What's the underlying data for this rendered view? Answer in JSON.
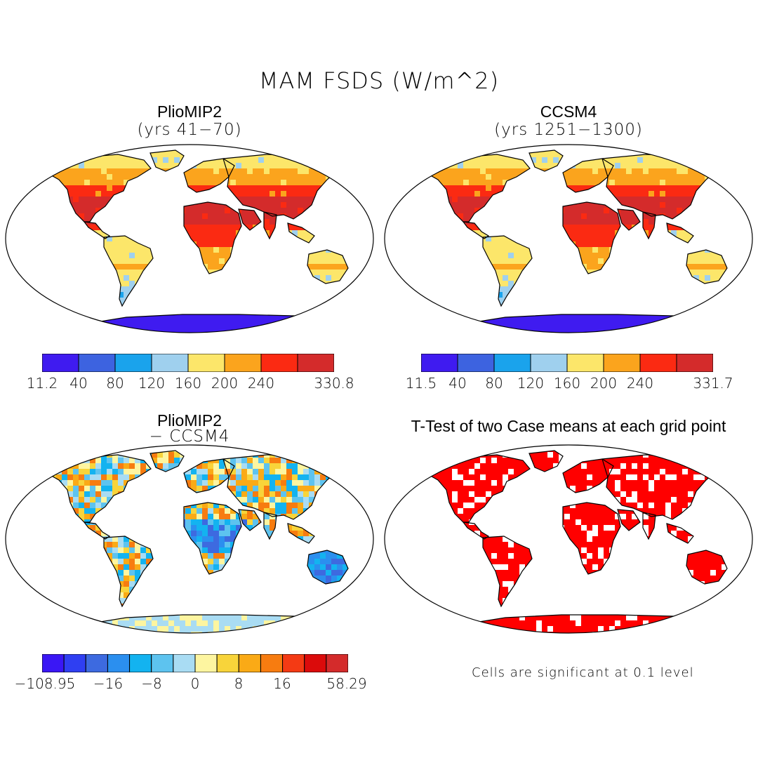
{
  "figure": {
    "title": "MAM FSDS (W/m^2)"
  },
  "panels": [
    {
      "id": "pliomip2",
      "title": "PlioMIP2",
      "subtitle": "(yrs 41−70)"
    },
    {
      "id": "ccsm4",
      "title": "CCSM4",
      "subtitle": "(yrs 1251−1300)"
    },
    {
      "id": "diff",
      "title": "PlioMIP2",
      "subtitle": "− CCSM4"
    },
    {
      "id": "ttest",
      "title": "T-Test of two Case means at each grid point",
      "subtitle": ""
    }
  ],
  "colorbars": {
    "pliomip2": {
      "colors": [
        "#3f1bf0",
        "#3d63e0",
        "#1aa3ec",
        "#9fd0ee",
        "#fce66a",
        "#fba41d",
        "#fb2a12",
        "#d42b2b"
      ],
      "labels": [
        "11.2",
        "40",
        "80",
        "120",
        "160",
        "200",
        "240",
        "330.8"
      ]
    },
    "ccsm4": {
      "colors": [
        "#3f1bf0",
        "#3d63e0",
        "#1aa3ec",
        "#9fd0ee",
        "#fce66a",
        "#fba41d",
        "#fb2a12",
        "#d42b2b"
      ],
      "labels": [
        "11.5",
        "40",
        "80",
        "120",
        "160",
        "200",
        "240",
        "331.7"
      ]
    },
    "diff": {
      "colors": [
        "#3a17f5",
        "#2f3ff2",
        "#3d6ae0",
        "#2b8fef",
        "#13b3f0",
        "#5dc3ef",
        "#a9dcf3",
        "#fdf5a0",
        "#f8d43a",
        "#faaa16",
        "#f77c10",
        "#f43a14",
        "#db0b0b",
        "#d42b2b"
      ],
      "labels": [
        "−108.95",
        "−16",
        "−8",
        "0",
        "8",
        "16",
        "58.29"
      ]
    }
  },
  "ttest": {
    "note": "Cells are significant at 0.1 level",
    "color": "#ff0000"
  },
  "chart_data": [
    {
      "type": "heatmap",
      "title": "PlioMIP2 (yrs 41-70)",
      "variable": "MAM FSDS",
      "units": "W/m^2",
      "range": [
        11.2,
        330.8
      ],
      "levels": [
        40,
        80,
        120,
        160,
        200,
        240
      ]
    },
    {
      "type": "heatmap",
      "title": "CCSM4 (yrs 1251-1300)",
      "variable": "MAM FSDS",
      "units": "W/m^2",
      "range": [
        11.5,
        331.7
      ],
      "levels": [
        40,
        80,
        120,
        160,
        200,
        240
      ]
    },
    {
      "type": "heatmap",
      "title": "PlioMIP2 - CCSM4",
      "variable": "MAM FSDS difference",
      "units": "W/m^2",
      "range": [
        -108.95,
        58.29
      ],
      "labeled_levels": [
        -16,
        -8,
        0,
        8,
        16
      ]
    },
    {
      "type": "heatmap",
      "title": "T-Test of two Case means at each grid point",
      "significance_level": 0.1
    }
  ]
}
